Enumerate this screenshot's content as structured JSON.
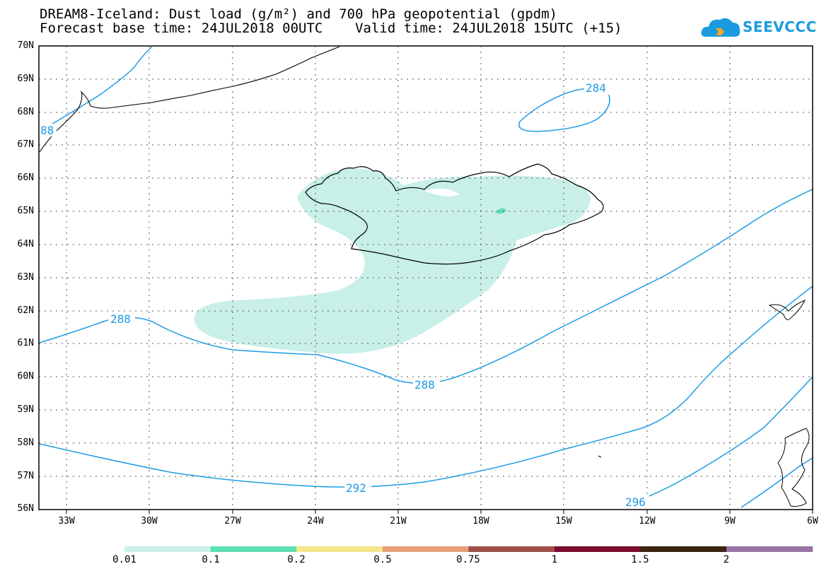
{
  "title": {
    "line1": "DREAM8-Iceland: Dust load (g/m²) and 700 hPa geopotential (gpdm)",
    "line2": "Forecast base time: 24JUL2018 00UTC    Valid time: 24JUL2018 15UTC (+15)"
  },
  "logo": {
    "text": "SEEVCCC",
    "icon": "cloud-icon"
  },
  "axes": {
    "lat_labels": [
      "70N",
      "69N",
      "68N",
      "67N",
      "66N",
      "65N",
      "64N",
      "63N",
      "62N",
      "61N",
      "60N",
      "59N",
      "58N",
      "57N",
      "56N"
    ],
    "lon_labels": [
      "33W",
      "30W",
      "27W",
      "24W",
      "21W",
      "18W",
      "15W",
      "12W",
      "9W",
      "6W"
    ]
  },
  "contour_labels": {
    "l284": "284",
    "l288a": "288",
    "l288b": "288",
    "l288c": "88",
    "l292": "292",
    "l296": "296"
  },
  "colorbar": {
    "labels": [
      "0.01",
      "0.1",
      "0.2",
      "0.5",
      "0.75",
      "1",
      "1.5",
      "2"
    ],
    "colors": [
      "#c8f0e8",
      "#5ee0b4",
      "#f5e68a",
      "#e8a07a",
      "#a0504a",
      "#7a0c2e",
      "#3a2412",
      "#9a74a4"
    ]
  },
  "colors": {
    "contour": "#1e9be6",
    "dust_low": "#c8f0e8",
    "dust_mid": "#5ee0b4"
  }
}
